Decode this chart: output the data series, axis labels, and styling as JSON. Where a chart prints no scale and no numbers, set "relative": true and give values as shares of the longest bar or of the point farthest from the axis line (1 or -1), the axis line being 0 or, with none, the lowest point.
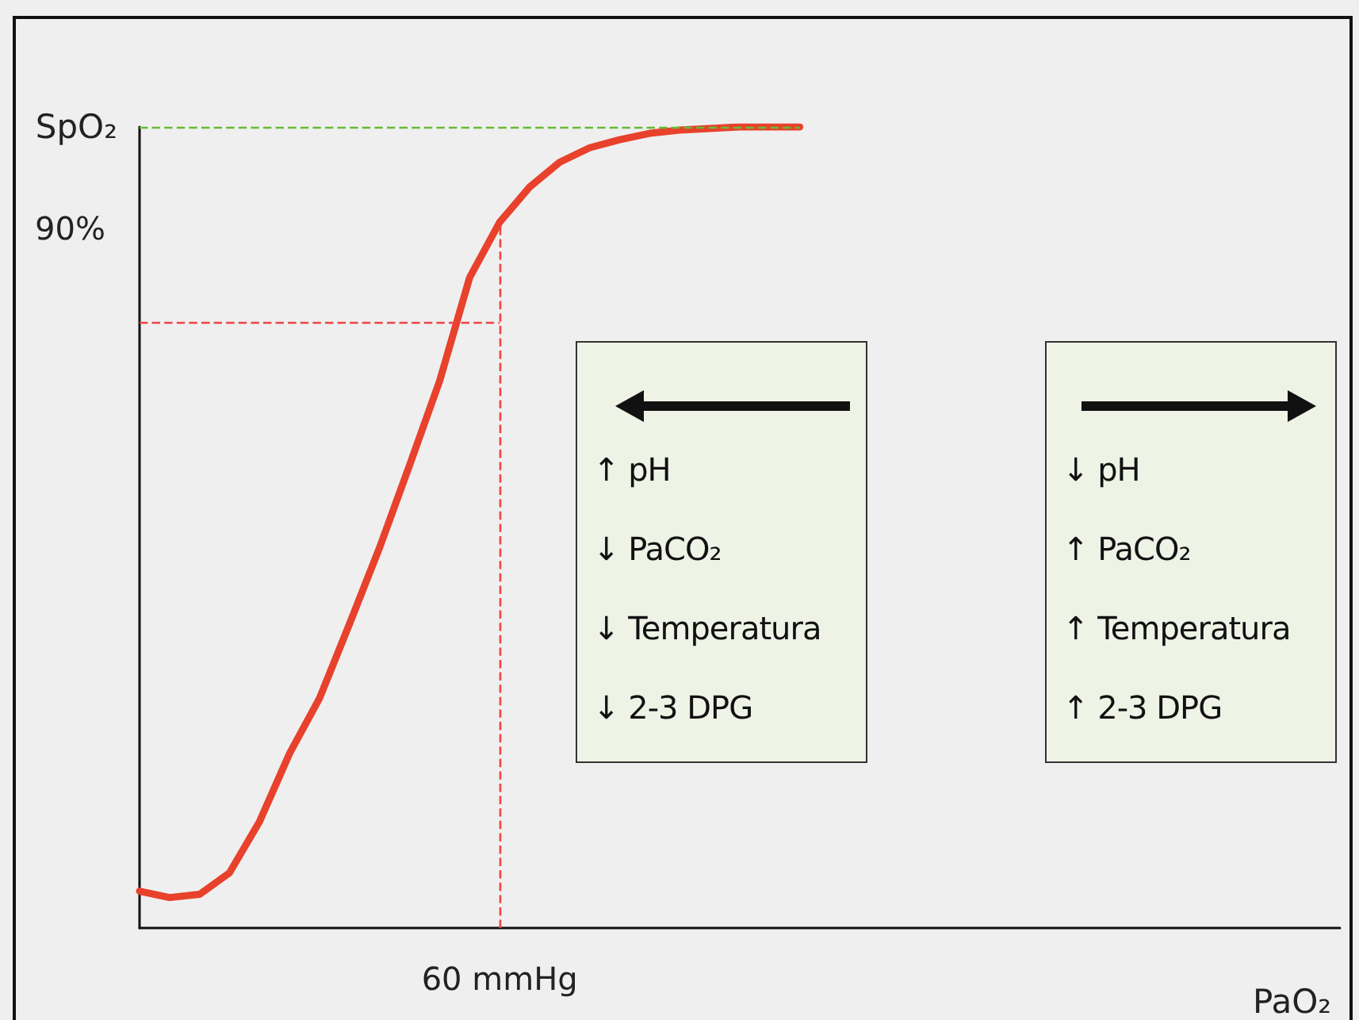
{
  "chart_data": {
    "type": "line",
    "relative": true,
    "xlabel": "PaO₂",
    "ylabel": "SpO₂",
    "categories": [
      null,
      null,
      null,
      null,
      null,
      null,
      null,
      null,
      null,
      null,
      null,
      null,
      null,
      null,
      null,
      null,
      null,
      null,
      null,
      null,
      null,
      null,
      null,
      null,
      null,
      null,
      null,
      null,
      null,
      null,
      null,
      null,
      null,
      null,
      null,
      null,
      null,
      null,
      null,
      null,
      null
    ],
    "series": [
      {
        "color": "#e8412c",
        "values": [
          0.046,
          0.038,
          0.042,
          0.069,
          0.133,
          0.218,
          0.287,
          0.38,
          0.475,
          0.578,
          0.683,
          0.812,
          0.881,
          0.925,
          0.956,
          0.974,
          0.984,
          0.992,
          0.996,
          0.998,
          1,
          1,
          1,
          null,
          null,
          null,
          null,
          null,
          null,
          null,
          null,
          null,
          null,
          null,
          null,
          null,
          null,
          null,
          null,
          null,
          null
        ]
      }
    ],
    "ref_lines": [
      {
        "axis": "y",
        "value": 1,
        "color": "#66bb33",
        "line_style": "dashed"
      },
      {
        "axis": "y",
        "value": 0.756,
        "color": "#ee4444",
        "line_style": "dashed"
      }
    ],
    "annotations": [
      "90%",
      "60 mmHg",
      "↑ pH",
      "↓ PaCO₂",
      "↓ Temperatura",
      "↓ 2-3 DPG",
      "↓ pH",
      "↑ PaCO₂",
      "↑ Temperatura",
      "↑ 2-3 DPG"
    ],
    "marker": "none",
    "line_style": "solid",
    "grid": false
  }
}
